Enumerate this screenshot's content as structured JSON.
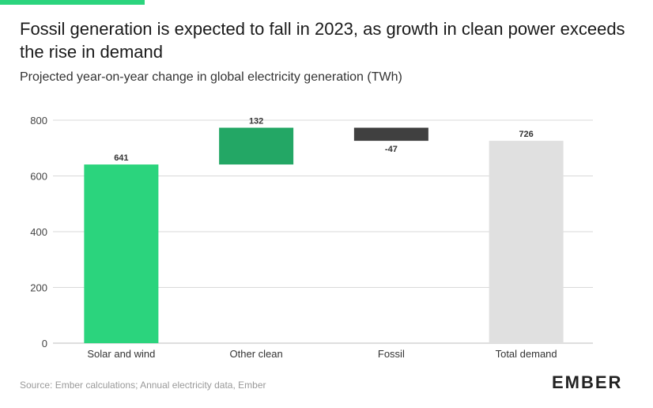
{
  "header": {
    "title": "Fossil generation is expected to fall in 2023, as growth in clean power exceeds the rise in demand",
    "subtitle": "Projected year-on-year change in global electricity generation (TWh)"
  },
  "footer": {
    "source": "Source: Ember calculations; Annual electricity data, Ember",
    "logo_text": "EMBER"
  },
  "colors": {
    "accent": "#2bd47d",
    "solar_wind": "#2bd47d",
    "other_clean": "#23a765",
    "fossil": "#404040",
    "total": "#e0e0e0",
    "grid": "#d9d9d9"
  },
  "chart_data": {
    "type": "bar",
    "subtype": "waterfall",
    "categories": [
      "Solar and wind",
      "Other clean",
      "Fossil",
      "Total demand"
    ],
    "values": [
      641,
      132,
      -47,
      726
    ],
    "bars": [
      {
        "category": "Solar and wind",
        "start": 0,
        "end": 641,
        "label": "641",
        "color": "#2bd47d"
      },
      {
        "category": "Other clean",
        "start": 641,
        "end": 773,
        "label": "132",
        "color": "#23a765"
      },
      {
        "category": "Fossil",
        "start": 773,
        "end": 726,
        "label": "-47",
        "color": "#404040"
      },
      {
        "category": "Total demand",
        "start": 0,
        "end": 726,
        "label": "726",
        "color": "#e0e0e0"
      }
    ],
    "ylim": [
      0,
      800
    ],
    "yticks": [
      0,
      200,
      400,
      600,
      800
    ],
    "ytick_labels": [
      "0",
      "200",
      "400",
      "600",
      "800"
    ],
    "xlabel": "",
    "ylabel": "",
    "grid": true
  }
}
